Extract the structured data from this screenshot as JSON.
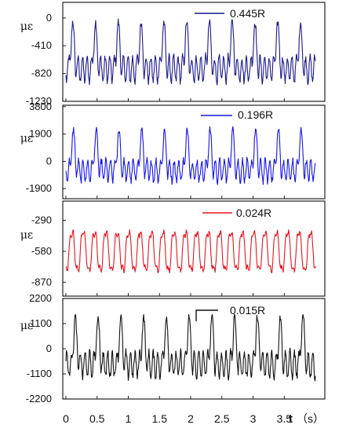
{
  "chart_data": {
    "type": "line",
    "x_axis": {
      "label": "t",
      "unit": "（s）",
      "ticks": [
        0,
        0.5,
        1,
        1.5,
        2,
        2.5,
        3,
        3.5
      ],
      "tick_labels": [
        "0",
        "0.5",
        "1",
        "1.5",
        "2",
        "2.5",
        "3",
        "3.5"
      ],
      "range": [
        -0.05,
        4.15
      ]
    },
    "panels": [
      {
        "series_name": "0.445R",
        "ylabel": "με",
        "color": "#1a1a8c",
        "ylim": [
          -1230,
          230
        ],
        "yticks": [
          0,
          -410,
          -820,
          -1230
        ],
        "ytick_labels": [
          "0",
          "-410",
          "-820",
          "-1230"
        ],
        "mean": -560,
        "peak_high": 120,
        "peak_low": -1000,
        "period_s": 0.365,
        "phase_s": 0.11
      },
      {
        "series_name": "0.196R",
        "ylabel": "με",
        "color": "#1515e6",
        "ylim": [
          -2600,
          3900
        ],
        "yticks": [
          3800,
          1900,
          0,
          -1900
        ],
        "ytick_labels": [
          "3800",
          "1900",
          "0",
          "-1900"
        ],
        "mean": 150,
        "peak_high": 2800,
        "peak_low": -1800,
        "period_s": 0.365,
        "phase_s": 0.12
      },
      {
        "series_name": "0.024R",
        "ylabel": "με",
        "color": "#e8141e",
        "ylim": [
          -1000,
          -110
        ],
        "yticks": [
          -290,
          -580,
          -870
        ],
        "ytick_labels": [
          "-290",
          "-580",
          "-870"
        ],
        "mean": -580,
        "peak_high": -370,
        "peak_low": -880,
        "period_s": 0.182,
        "phase_s": 0.05
      },
      {
        "series_name": "0.015R",
        "ylabel": "με",
        "color": "#111111",
        "ylim": [
          -2200,
          2200
        ],
        "yticks": [
          2200,
          1100,
          0,
          -1100,
          -2200
        ],
        "ytick_labels": [
          "2200",
          "1100",
          "0",
          "-1100",
          "-2200"
        ],
        "mean": -100,
        "peak_high": 1500,
        "peak_low": -1900,
        "period_s": 0.365,
        "phase_s": 0.15
      }
    ]
  }
}
